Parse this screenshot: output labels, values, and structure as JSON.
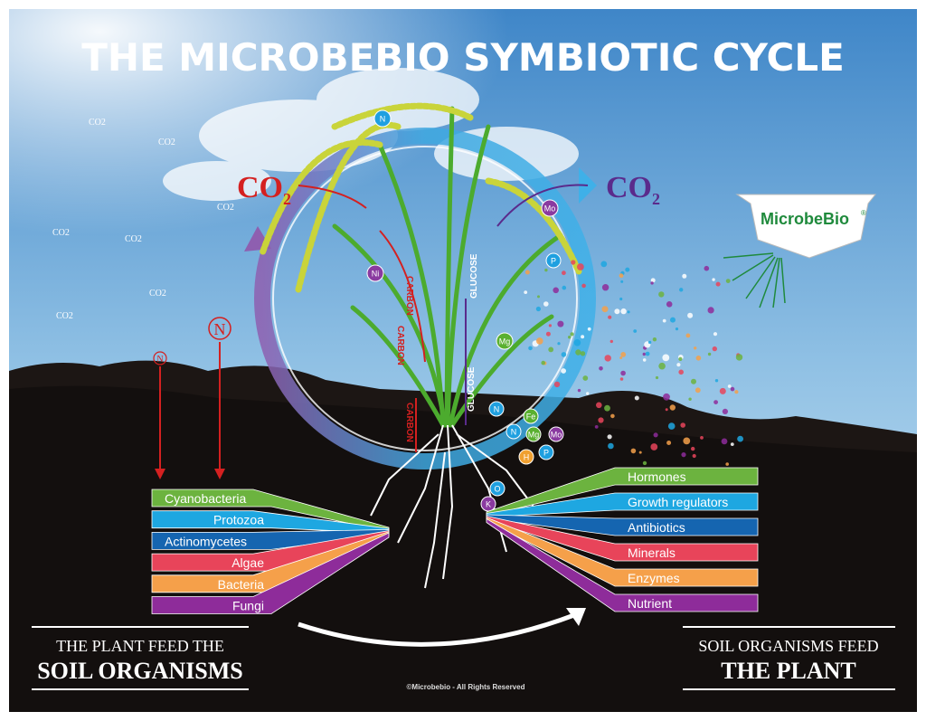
{
  "title": "THE MICROBEBIO SYMBIOTIC CYCLE",
  "logo": {
    "text": "MicrobeBio",
    "mark": "®",
    "color": "#1f8a3c"
  },
  "co2_labels": {
    "left": "CO",
    "right": "CO",
    "sub": "2",
    "left_color": "#d42020",
    "right_color": "#5a2b8c"
  },
  "sky_co2": [
    "CO2",
    "CO2",
    "CO2",
    "CO2",
    "CO2",
    "CO2",
    "CO2"
  ],
  "nitrogen": {
    "large": "N",
    "small": "N",
    "color": "#d42020"
  },
  "flow_labels": {
    "carbon_1": "CARBON",
    "carbon_2": "CARBON",
    "carbon_3": "CARBON",
    "glucose_1": "GLUCOSE",
    "glucose_2": "GLUCOSE"
  },
  "nutrients": [
    {
      "symbol": "N",
      "color": "#1fa0e0"
    },
    {
      "symbol": "Mo",
      "color": "#8a3aa0"
    },
    {
      "symbol": "P",
      "color": "#1fa0e0"
    },
    {
      "symbol": "Ni",
      "color": "#8a3aa0"
    },
    {
      "symbol": "Mg",
      "color": "#5ab030"
    },
    {
      "symbol": "N",
      "color": "#1fa0e0"
    },
    {
      "symbol": "Fe",
      "color": "#5ab030"
    },
    {
      "symbol": "N",
      "color": "#1fa0e0"
    },
    {
      "symbol": "Mg",
      "color": "#5ab030"
    },
    {
      "symbol": "Mo",
      "color": "#8a3aa0"
    },
    {
      "symbol": "H",
      "color": "#f0a030"
    },
    {
      "symbol": "P",
      "color": "#1fa0e0"
    },
    {
      "symbol": "O",
      "color": "#1fa0e0"
    },
    {
      "symbol": "K",
      "color": "#8a3aa0"
    }
  ],
  "soil_organisms": [
    {
      "label": "Cyanobacteria",
      "color": "#6cb33f"
    },
    {
      "label": "Protozoa",
      "color": "#1ea7e1"
    },
    {
      "label": "Actinomycetes",
      "color": "#1565b0"
    },
    {
      "label": "Algae",
      "color": "#e8445a"
    },
    {
      "label": "Bacteria",
      "color": "#f5a04a"
    },
    {
      "label": "Fungi",
      "color": "#8e2c9a"
    }
  ],
  "plant_outputs": [
    {
      "label": "Hormones",
      "color": "#6cb33f"
    },
    {
      "label": "Growth regulators",
      "color": "#1ea7e1"
    },
    {
      "label": "Antibiotics",
      "color": "#1565b0"
    },
    {
      "label": "Minerals",
      "color": "#e8445a"
    },
    {
      "label": "Enzymes",
      "color": "#f5a04a"
    },
    {
      "label": "Nutrient",
      "color": "#8e2c9a"
    }
  ],
  "bottom_left": {
    "line1": "THE PLANT FEED THE",
    "line2": "SOIL ORGANISMS"
  },
  "bottom_right": {
    "line1": "SOIL ORGANISMS FEED",
    "line2": "THE PLANT"
  },
  "copyright": "©Microbebio - All Rights Reserved"
}
